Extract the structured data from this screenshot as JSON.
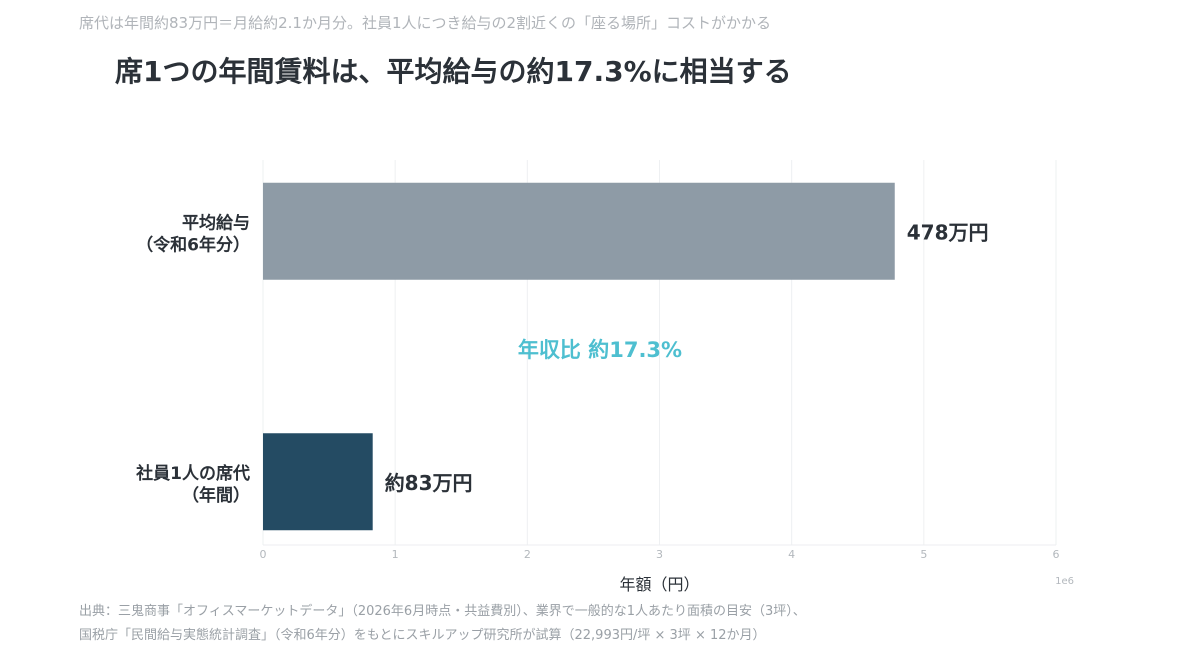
{
  "header": {
    "subtitle": "席代は年間約83万円＝月給約2.1か月分。社員1人につき給与の2割近くの「座る場所」コストがかかる",
    "title": "席1つの年間賃料は、平均給与の約17.3%に相当する"
  },
  "chart_data": {
    "type": "bar",
    "orientation": "horizontal",
    "categories": [
      [
        "平均給与",
        "（令和6年分）"
      ],
      [
        "社員1人の席代",
        "（年間）"
      ]
    ],
    "values": [
      4780000,
      830000
    ],
    "value_labels": [
      "478万円",
      "約83万円"
    ],
    "colors": [
      "#8e9ba6",
      "#244b63"
    ],
    "xlabel": "年額（円）",
    "x_scale_note": "1e6",
    "xlim": [
      0,
      6000000
    ],
    "xticks": [
      0,
      1,
      2,
      3,
      4,
      5,
      6
    ],
    "grid": true,
    "annotation": "年収比 約17.3%",
    "annotation_color": "#4ebfd0"
  },
  "footer": {
    "source_line1": "出典：三鬼商事「オフィスマーケットデータ」（2026年6月時点・共益費別）、業界で一般的な1人あたり面積の目安（3坪）、",
    "source_line2": "国税庁「民間給与実態統計調査」（令和6年分）をもとにスキルアップ研究所が試算（22,993円/坪 × 3坪 × 12か月）"
  }
}
